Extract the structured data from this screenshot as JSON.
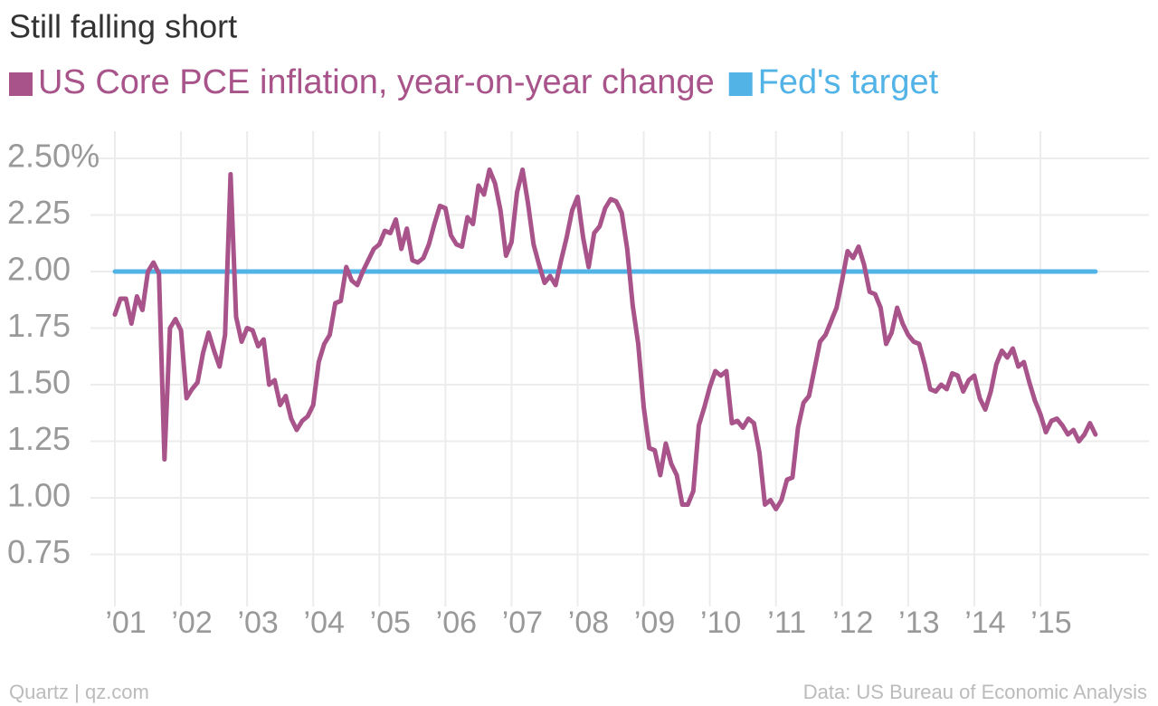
{
  "chart_data": {
    "type": "line",
    "title": "Still falling short",
    "categories": [
      "’01",
      null,
      null,
      null,
      null,
      null,
      null,
      null,
      null,
      null,
      null,
      null,
      "’02",
      null,
      null,
      null,
      null,
      null,
      null,
      null,
      null,
      null,
      null,
      null,
      "’03",
      null,
      null,
      null,
      null,
      null,
      null,
      null,
      null,
      null,
      null,
      null,
      "’04",
      null,
      null,
      null,
      null,
      null,
      null,
      null,
      null,
      null,
      null,
      null,
      "’05",
      null,
      null,
      null,
      null,
      null,
      null,
      null,
      null,
      null,
      null,
      null,
      "’06",
      null,
      null,
      null,
      null,
      null,
      null,
      null,
      null,
      null,
      null,
      null,
      "’07",
      null,
      null,
      null,
      null,
      null,
      null,
      null,
      null,
      null,
      null,
      null,
      "’08",
      null,
      null,
      null,
      null,
      null,
      null,
      null,
      null,
      null,
      null,
      null,
      "’09",
      null,
      null,
      null,
      null,
      null,
      null,
      null,
      null,
      null,
      null,
      null,
      "’10",
      null,
      null,
      null,
      null,
      null,
      null,
      null,
      null,
      null,
      null,
      null,
      "’11",
      null,
      null,
      null,
      null,
      null,
      null,
      null,
      null,
      null,
      null,
      null,
      "’12",
      null,
      null,
      null,
      null,
      null,
      null,
      null,
      null,
      null,
      null,
      null,
      "’13",
      null,
      null,
      null,
      null,
      null,
      null,
      null,
      null,
      null,
      null,
      null,
      "’14",
      null,
      null,
      null,
      null,
      null,
      null,
      null,
      null,
      null,
      null,
      null,
      "’15",
      null,
      null,
      null,
      null,
      null,
      null,
      null,
      null,
      null,
      null
    ],
    "series": [
      {
        "name": "US Core PCE inflation, year-on-year change",
        "color": "#a8548b",
        "values": [
          1.81,
          1.88,
          1.88,
          1.77,
          1.89,
          1.83,
          2.0,
          2.04,
          1.99,
          1.17,
          1.75,
          1.79,
          1.74,
          1.44,
          1.48,
          1.51,
          1.64,
          1.73,
          1.65,
          1.58,
          1.72,
          2.43,
          1.8,
          1.69,
          1.75,
          1.74,
          1.67,
          1.7,
          1.5,
          1.52,
          1.41,
          1.45,
          1.35,
          1.3,
          1.34,
          1.36,
          1.41,
          1.6,
          1.68,
          1.72,
          1.86,
          1.87,
          2.02,
          1.96,
          1.94,
          2.0,
          2.05,
          2.1,
          2.12,
          2.18,
          2.17,
          2.23,
          2.1,
          2.19,
          2.05,
          2.04,
          2.06,
          2.12,
          2.21,
          2.29,
          2.28,
          2.16,
          2.12,
          2.11,
          2.24,
          2.21,
          2.38,
          2.34,
          2.45,
          2.39,
          2.27,
          2.07,
          2.13,
          2.35,
          2.45,
          2.3,
          2.12,
          2.03,
          1.95,
          1.98,
          1.94,
          2.05,
          2.15,
          2.27,
          2.33,
          2.15,
          2.02,
          2.17,
          2.2,
          2.28,
          2.32,
          2.31,
          2.26,
          2.1,
          1.85,
          1.68,
          1.4,
          1.22,
          1.21,
          1.1,
          1.24,
          1.15,
          1.1,
          0.97,
          0.97,
          1.03,
          1.32,
          1.4,
          1.49,
          1.56,
          1.54,
          1.56,
          1.33,
          1.34,
          1.31,
          1.35,
          1.33,
          1.2,
          0.97,
          0.99,
          0.95,
          0.99,
          1.08,
          1.09,
          1.31,
          1.42,
          1.45,
          1.57,
          1.69,
          1.72,
          1.78,
          1.84,
          1.96,
          2.09,
          2.06,
          2.11,
          2.03,
          1.91,
          1.9,
          1.84,
          1.68,
          1.73,
          1.84,
          1.77,
          1.72,
          1.69,
          1.68,
          1.59,
          1.48,
          1.47,
          1.5,
          1.48,
          1.55,
          1.54,
          1.47,
          1.52,
          1.54,
          1.44,
          1.39,
          1.47,
          1.59,
          1.65,
          1.62,
          1.66,
          1.58,
          1.6,
          1.51,
          1.43,
          1.37,
          1.29,
          1.34,
          1.35,
          1.32,
          1.28,
          1.3,
          1.25,
          1.28,
          1.33,
          1.28
        ]
      },
      {
        "name": "Fed's target",
        "color": "#52b3e6",
        "values": [
          2,
          2,
          2,
          2,
          2,
          2,
          2,
          2,
          2,
          2,
          2,
          2,
          2,
          2,
          2,
          2,
          2,
          2,
          2,
          2,
          2,
          2,
          2,
          2,
          2,
          2,
          2,
          2,
          2,
          2,
          2,
          2,
          2,
          2,
          2,
          2,
          2,
          2,
          2,
          2,
          2,
          2,
          2,
          2,
          2,
          2,
          2,
          2,
          2,
          2,
          2,
          2,
          2,
          2,
          2,
          2,
          2,
          2,
          2,
          2,
          2,
          2,
          2,
          2,
          2,
          2,
          2,
          2,
          2,
          2,
          2,
          2,
          2,
          2,
          2,
          2,
          2,
          2,
          2,
          2,
          2,
          2,
          2,
          2,
          2,
          2,
          2,
          2,
          2,
          2,
          2,
          2,
          2,
          2,
          2,
          2,
          2,
          2,
          2,
          2,
          2,
          2,
          2,
          2,
          2,
          2,
          2,
          2,
          2,
          2,
          2,
          2,
          2,
          2,
          2,
          2,
          2,
          2,
          2,
          2,
          2,
          2,
          2,
          2,
          2,
          2,
          2,
          2,
          2,
          2,
          2,
          2,
          2,
          2,
          2,
          2,
          2,
          2,
          2,
          2,
          2,
          2,
          2,
          2,
          2,
          2,
          2,
          2,
          2,
          2,
          2,
          2,
          2,
          2,
          2,
          2,
          2,
          2,
          2,
          2,
          2,
          2,
          2,
          2,
          2,
          2,
          2,
          2,
          2,
          2,
          2,
          2,
          2,
          2,
          2,
          2,
          2,
          2,
          2
        ]
      }
    ],
    "ylim": [
      0.6,
      2.62
    ],
    "yticks": [
      {
        "value": 2.5,
        "label": "2.50%"
      },
      {
        "value": 2.25,
        "label": "2.25"
      },
      {
        "value": 2.0,
        "label": "2.00"
      },
      {
        "value": 1.75,
        "label": "1.75"
      },
      {
        "value": 1.5,
        "label": "1.50"
      },
      {
        "value": 1.25,
        "label": "1.25"
      },
      {
        "value": 1.0,
        "label": "1.00"
      },
      {
        "value": 0.75,
        "label": "0.75"
      }
    ],
    "grid": true,
    "source_left": "Quartz | qz.com",
    "source_right": "Data: US Bureau of Economic Analysis"
  }
}
